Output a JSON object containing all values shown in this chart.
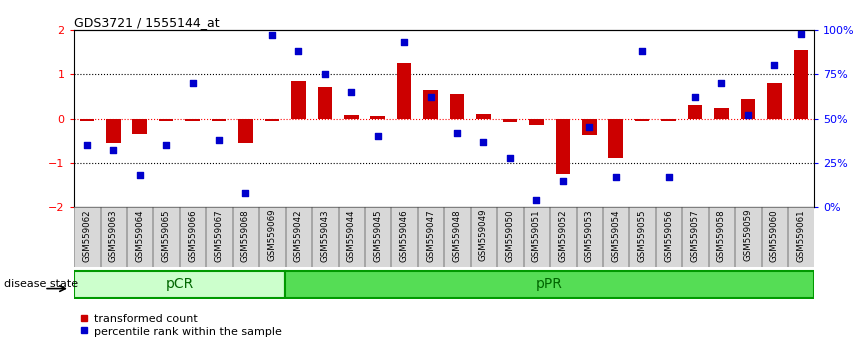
{
  "title": "GDS3721 / 1555144_at",
  "samples": [
    "GSM559062",
    "GSM559063",
    "GSM559064",
    "GSM559065",
    "GSM559066",
    "GSM559067",
    "GSM559068",
    "GSM559069",
    "GSM559042",
    "GSM559043",
    "GSM559044",
    "GSM559045",
    "GSM559046",
    "GSM559047",
    "GSM559048",
    "GSM559049",
    "GSM559050",
    "GSM559051",
    "GSM559052",
    "GSM559053",
    "GSM559054",
    "GSM559055",
    "GSM559056",
    "GSM559057",
    "GSM559058",
    "GSM559059",
    "GSM559060",
    "GSM559061"
  ],
  "transformed_count": [
    -0.05,
    -0.55,
    -0.35,
    -0.05,
    -0.05,
    -0.05,
    -0.55,
    -0.05,
    0.85,
    0.72,
    0.08,
    0.05,
    1.25,
    0.65,
    0.55,
    0.1,
    -0.08,
    -0.15,
    -1.25,
    -0.38,
    -0.9,
    -0.05,
    -0.05,
    0.3,
    0.25,
    0.45,
    0.8,
    1.55
  ],
  "percentile_rank": [
    35,
    32,
    18,
    35,
    70,
    38,
    8,
    97,
    88,
    75,
    65,
    40,
    93,
    62,
    42,
    37,
    28,
    4,
    15,
    45,
    17,
    88,
    17,
    62,
    70,
    52,
    80,
    98
  ],
  "disease_groups": [
    {
      "label": "pCR",
      "start": 0,
      "end": 8,
      "color": "#ccffcc"
    },
    {
      "label": "pPR",
      "start": 8,
      "end": 28,
      "color": "#55dd55"
    }
  ],
  "bar_color": "#cc0000",
  "point_color": "#0000cc",
  "ylim_left": [
    -2,
    2
  ],
  "ylim_right": [
    0,
    100
  ],
  "yticks_left": [
    -2,
    -1,
    0,
    1,
    2
  ],
  "yticks_right": [
    0,
    25,
    50,
    75,
    100
  ],
  "ytick_labels_right": [
    "0%",
    "25%",
    "50%",
    "75%",
    "100%"
  ],
  "bg_color": "white",
  "label_transformed": "transformed count",
  "label_percentile": "percentile rank within the sample",
  "disease_state_label": "disease state"
}
